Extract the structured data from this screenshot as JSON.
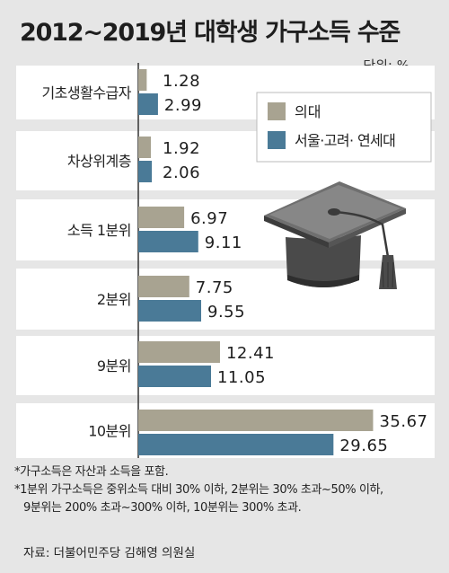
{
  "title": "2012~2019년 대학생 가구소득 수준",
  "unit_label": "단위: %",
  "chart_data": {
    "type": "bar",
    "orientation": "horizontal",
    "title": "2012~2019년 대학생 가구소득 수준",
    "unit": "%",
    "categories": [
      "기초생활수급자",
      "차상위계층",
      "소득 1분위",
      "2분위",
      "9분위",
      "10분위"
    ],
    "series": [
      {
        "name": "의대",
        "color": "#a8a391",
        "values": [
          1.28,
          1.92,
          6.97,
          7.75,
          12.41,
          35.67
        ]
      },
      {
        "name": "서울·고려· 연세대",
        "color": "#4a7a97",
        "values": [
          2.99,
          2.06,
          9.11,
          9.55,
          11.05,
          29.65
        ]
      }
    ],
    "value_labels": [
      [
        "1.28",
        "1.92",
        "6.97",
        "7.75",
        "12.41",
        "35.67"
      ],
      [
        "2.99",
        "2.06",
        "9.11",
        "9.55",
        "11.05",
        "29.65"
      ]
    ],
    "legend_position": "top-right",
    "grid": false
  },
  "notes": [
    "*가구소득은 자산과 소득을 포함.",
    "*1분위 가구소득은 중위소득 대비 30% 이하, 2분위는 30% 초과~50% 이하,",
    "9분위는 200% 초과~300% 이하, 10분위는 300% 초과."
  ],
  "source": "자료: 더불어민주당 김해영 의원실",
  "colors": {
    "background": "#e6e6e6",
    "panel": "#ffffff",
    "baseline": "#333333"
  },
  "decoration": "graduation-cap-icon"
}
